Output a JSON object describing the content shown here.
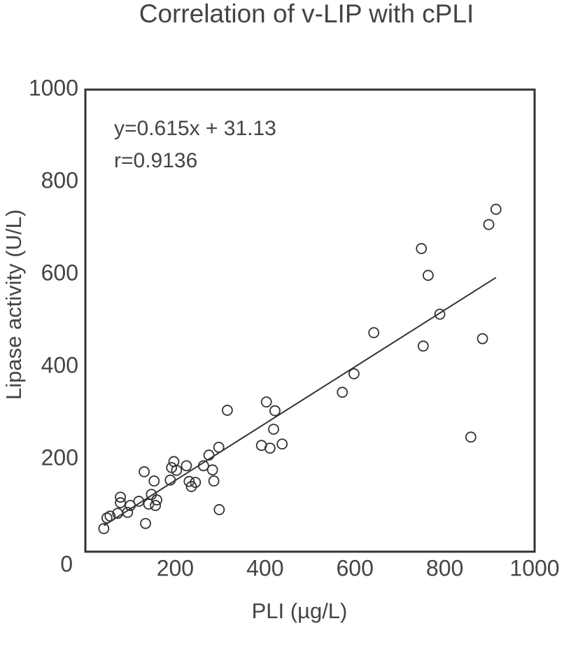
{
  "chart_data": {
    "type": "scatter",
    "title": "Correlation of v-LIP with cPLI",
    "x_label": "PLI (µg/L)",
    "y_label": "Lipase activity (U/L)",
    "annotations": [
      "y=0.615x + 31.13",
      "r=0.9136"
    ],
    "trendline": {
      "slope": 0.615,
      "intercept": 31.13
    },
    "color": "#333333",
    "xlim": [
      0,
      1000
    ],
    "ylim": [
      0,
      1000
    ],
    "xticks": [
      200,
      400,
      600,
      800,
      1000
    ],
    "yticks": [
      0,
      200,
      400,
      600,
      800,
      1000
    ],
    "x": [
      41,
      48,
      55,
      72,
      78,
      78,
      94,
      100,
      119,
      131,
      134,
      141,
      147,
      153,
      156,
      159,
      189,
      192,
      197,
      203,
      225,
      231,
      236,
      245,
      263,
      275,
      283,
      286,
      297,
      298,
      316,
      392,
      403,
      411,
      419,
      422,
      438,
      572,
      598,
      642,
      748,
      752,
      763,
      789,
      858,
      884,
      898,
      914
    ],
    "y": [
      50,
      73,
      77,
      83,
      118,
      106,
      85,
      100,
      109,
      173,
      61,
      103,
      124,
      153,
      100,
      112,
      155,
      182,
      195,
      176,
      186,
      152,
      141,
      150,
      186,
      209,
      177,
      153,
      226,
      91,
      306,
      230,
      324,
      224,
      265,
      305,
      233,
      345,
      385,
      474,
      656,
      445,
      598,
      514,
      248,
      461,
      708,
      741
    ]
  }
}
